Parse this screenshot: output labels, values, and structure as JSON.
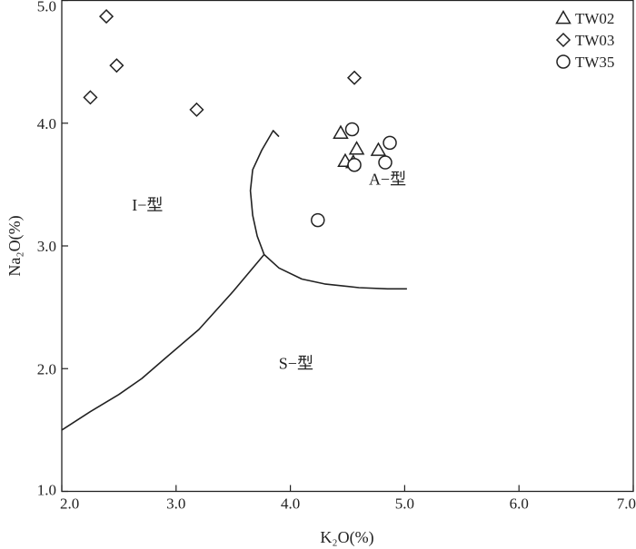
{
  "chart_data": {
    "type": "scatter",
    "xlabel": "K₂O(%)",
    "ylabel": "Na₂O(%)",
    "xlim": [
      2.0,
      7.0
    ],
    "ylim": [
      1.0,
      5.0
    ],
    "x_ticks": [
      2.0,
      3.0,
      4.0,
      5.0,
      6.0,
      7.0
    ],
    "x_tick_labels": [
      "2.0",
      "3.0",
      "4.0",
      "5.0",
      "6.0",
      "7.0"
    ],
    "y_ticks": [
      1.0,
      2.0,
      3.0,
      4.0,
      5.0
    ],
    "y_tick_labels": [
      "1.0",
      "2.0",
      "3.0",
      "4.0",
      "5.0"
    ],
    "grid": false,
    "legend_position": "top-right",
    "series": [
      {
        "name": "TW02",
        "marker": "triangle",
        "points": [
          [
            4.44,
            3.92
          ],
          [
            4.48,
            3.69
          ],
          [
            4.55,
            3.68
          ],
          [
            4.58,
            3.79
          ],
          [
            4.77,
            3.78
          ]
        ]
      },
      {
        "name": "TW03",
        "marker": "diamond",
        "points": [
          [
            2.25,
            4.21
          ],
          [
            2.39,
            4.87
          ],
          [
            2.48,
            4.47
          ],
          [
            3.18,
            4.11
          ],
          [
            4.56,
            4.37
          ]
        ]
      },
      {
        "name": "TW35",
        "marker": "circle",
        "points": [
          [
            4.24,
            3.21
          ],
          [
            4.54,
            3.95
          ],
          [
            4.56,
            3.66
          ],
          [
            4.83,
            3.68
          ],
          [
            4.87,
            3.84
          ]
        ]
      }
    ],
    "boundaries": [
      {
        "name": "is-boundary",
        "points": [
          [
            2.0,
            1.5
          ],
          [
            2.25,
            1.65
          ],
          [
            2.5,
            1.79
          ],
          [
            2.7,
            1.92
          ],
          [
            2.9,
            2.08
          ],
          [
            3.2,
            2.32
          ],
          [
            3.5,
            2.63
          ],
          [
            3.77,
            2.93
          ]
        ]
      },
      {
        "name": "ia-boundary",
        "points": [
          [
            3.77,
            2.93
          ],
          [
            3.71,
            3.08
          ],
          [
            3.67,
            3.25
          ],
          [
            3.65,
            3.45
          ],
          [
            3.67,
            3.62
          ],
          [
            3.75,
            3.78
          ],
          [
            3.85,
            3.94
          ],
          [
            3.9,
            3.89
          ]
        ]
      },
      {
        "name": "as-boundary",
        "points": [
          [
            3.77,
            2.93
          ],
          [
            3.9,
            2.82
          ],
          [
            4.1,
            2.73
          ],
          [
            4.3,
            2.69
          ],
          [
            4.6,
            2.66
          ],
          [
            4.85,
            2.65
          ],
          [
            5.02,
            2.65
          ]
        ]
      }
    ],
    "annotations": [
      {
        "text": "I−型",
        "x": 2.75,
        "y": 3.29
      },
      {
        "text": "A−型",
        "x": 4.85,
        "y": 3.5
      },
      {
        "text": "S−型",
        "x": 4.05,
        "y": 2.0
      }
    ]
  }
}
